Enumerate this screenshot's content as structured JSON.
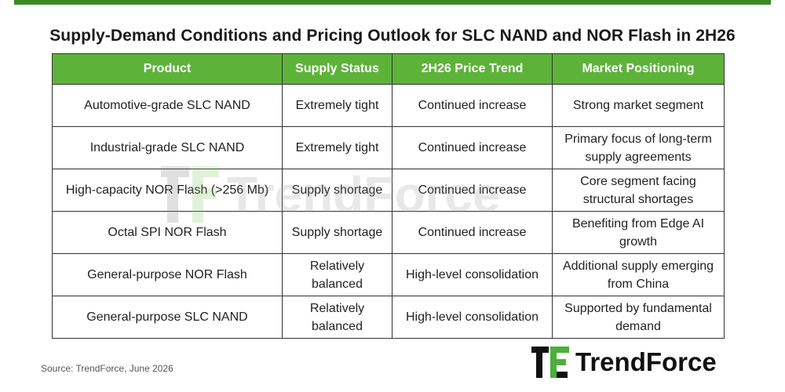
{
  "title": "Supply-Demand Conditions and Pricing Outlook for SLC NAND and NOR Flash in 2H26",
  "headers": [
    "Product",
    "Supply Status",
    "2H26 Price Trend",
    "Market Positioning"
  ],
  "rows": [
    [
      "Automotive-grade SLC NAND",
      "Extremely tight",
      "Continued increase",
      "Strong market segment"
    ],
    [
      "Industrial-grade SLC NAND",
      "Extremely tight",
      "Continued increase",
      "Primary focus of long-term supply agreements"
    ],
    [
      "High-capacity NOR Flash (>256 Mb)",
      "Supply shortage",
      "Continued increase",
      "Core segment facing structural shortages"
    ],
    [
      "Octal SPI NOR Flash",
      "Supply shortage",
      "Continued increase",
      "Benefiting from Edge AI growth"
    ],
    [
      "General-purpose NOR Flash",
      "Relatively balanced",
      "High-level consolidation",
      "Additional supply emerging from China"
    ],
    [
      "General-purpose SLC NAND",
      "Relatively balanced",
      "High-level consolidation",
      "Supported by fundamental demand"
    ]
  ],
  "source": "Source: TrendForce, June 2026",
  "watermark": "TrendForce",
  "logo": "TrendForce",
  "colors": {
    "accent": "#3b8a2a",
    "header_bg": "#5db33a",
    "header_text": "#ffffff"
  }
}
